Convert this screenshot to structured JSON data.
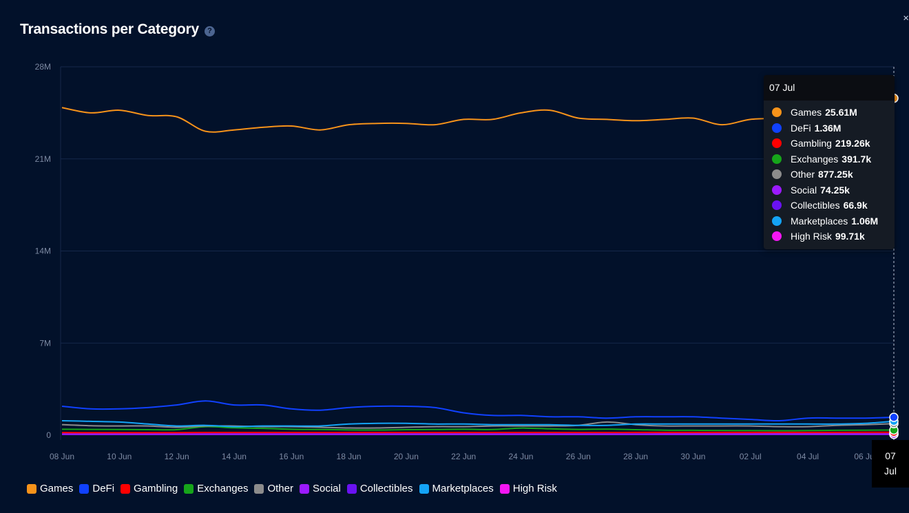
{
  "header": {
    "title": "Transactions per Category",
    "help_icon": "question-circle-icon",
    "close_glyph": "×"
  },
  "tooltip": {
    "date": "07 Jul",
    "rows": [
      {
        "name": "Games",
        "value": "25.61M",
        "color": "#f7931a"
      },
      {
        "name": "DeFi",
        "value": "1.36M",
        "color": "#1041ff"
      },
      {
        "name": "Gambling",
        "value": "219.26k",
        "color": "#ff0000"
      },
      {
        "name": "Exchanges",
        "value": "391.7k",
        "color": "#16a51a"
      },
      {
        "name": "Other",
        "value": "877.25k",
        "color": "#8c8c8c"
      },
      {
        "name": "Social",
        "value": "74.25k",
        "color": "#9b1aff"
      },
      {
        "name": "Collectibles",
        "value": "66.9k",
        "color": "#6a12f2"
      },
      {
        "name": "Marketplaces",
        "value": "1.06M",
        "color": "#14a3f5"
      },
      {
        "name": "High Risk",
        "value": "99.71k",
        "color": "#f516f3"
      }
    ]
  },
  "hover_x_label": {
    "line1": "07",
    "line2": "Jul"
  },
  "chart_data": {
    "type": "line",
    "title": "Transactions per Category",
    "xlabel": "",
    "ylabel": "",
    "ylim": [
      0,
      28000000
    ],
    "y_ticks": [
      {
        "label": "28M",
        "value": 28000000
      },
      {
        "label": "21M",
        "value": 21000000
      },
      {
        "label": "14M",
        "value": 14000000
      },
      {
        "label": "7M",
        "value": 7000000
      },
      {
        "label": "0",
        "value": 0
      }
    ],
    "x_ticks": [
      "08 Jun",
      "10 Jun",
      "12 Jun",
      "14 Jun",
      "16 Jun",
      "18 Jun",
      "20 Jun",
      "22 Jun",
      "24 Jun",
      "26 Jun",
      "28 Jun",
      "30 Jun",
      "02 Jul",
      "04 Jul",
      "06 Jul"
    ],
    "grid": true,
    "legend_position": "bottom-left",
    "x": [
      "08 Jun",
      "09 Jun",
      "10 Jun",
      "11 Jun",
      "12 Jun",
      "13 Jun",
      "14 Jun",
      "15 Jun",
      "16 Jun",
      "17 Jun",
      "18 Jun",
      "19 Jun",
      "20 Jun",
      "21 Jun",
      "22 Jun",
      "23 Jun",
      "24 Jun",
      "25 Jun",
      "26 Jun",
      "27 Jun",
      "28 Jun",
      "29 Jun",
      "30 Jun",
      "01 Jul",
      "02 Jul",
      "03 Jul",
      "04 Jul",
      "05 Jul",
      "06 Jul",
      "07 Jul"
    ],
    "series": [
      {
        "name": "Games",
        "color": "#f7931a",
        "values": [
          24900000,
          24500000,
          24700000,
          24300000,
          24200000,
          23100000,
          23200000,
          23400000,
          23500000,
          23200000,
          23600000,
          23700000,
          23700000,
          23600000,
          24000000,
          24000000,
          24500000,
          24700000,
          24100000,
          24000000,
          23900000,
          24000000,
          24100000,
          23600000,
          24000000,
          24100000,
          24300000,
          24600000,
          24900000,
          25610000
        ]
      },
      {
        "name": "DeFi",
        "color": "#1041ff",
        "values": [
          2200000,
          2000000,
          2000000,
          2100000,
          2300000,
          2600000,
          2300000,
          2300000,
          2000000,
          1900000,
          2100000,
          2200000,
          2200000,
          2100000,
          1700000,
          1500000,
          1500000,
          1400000,
          1400000,
          1300000,
          1400000,
          1400000,
          1400000,
          1300000,
          1200000,
          1100000,
          1300000,
          1300000,
          1300000,
          1360000
        ]
      },
      {
        "name": "Gambling",
        "color": "#ff0000",
        "values": [
          200000,
          200000,
          200000,
          200000,
          200000,
          210000,
          210000,
          210000,
          210000,
          210000,
          210000,
          210000,
          210000,
          210000,
          210000,
          210000,
          210000,
          210000,
          210000,
          210000,
          215000,
          215000,
          215000,
          215000,
          215000,
          215000,
          215000,
          215000,
          219000,
          219260
        ]
      },
      {
        "name": "Exchanges",
        "color": "#16a51a",
        "values": [
          450000,
          440000,
          430000,
          420000,
          420000,
          650000,
          560000,
          520000,
          450000,
          430000,
          400000,
          390000,
          420000,
          430000,
          450000,
          430000,
          540000,
          480000,
          440000,
          460000,
          420000,
          380000,
          370000,
          360000,
          350000,
          340000,
          350000,
          370000,
          380000,
          391700
        ]
      },
      {
        "name": "Other",
        "color": "#8c8c8c",
        "values": [
          800000,
          720000,
          700000,
          700000,
          600000,
          700000,
          700000,
          650000,
          650000,
          600000,
          550000,
          550000,
          600000,
          650000,
          650000,
          700000,
          700000,
          700000,
          750000,
          1000000,
          800000,
          700000,
          700000,
          700000,
          700000,
          650000,
          650000,
          750000,
          800000,
          877250
        ]
      },
      {
        "name": "Social",
        "color": "#9b1aff",
        "values": [
          70000,
          70000,
          70000,
          70000,
          70000,
          70000,
          70000,
          70000,
          70000,
          70000,
          70000,
          70000,
          70000,
          70000,
          70000,
          70000,
          70000,
          70000,
          70000,
          70000,
          70000,
          70000,
          70000,
          70000,
          70000,
          72000,
          72000,
          73000,
          74000,
          74250
        ]
      },
      {
        "name": "Collectibles",
        "color": "#6a12f2",
        "values": [
          60000,
          60000,
          60000,
          60000,
          60000,
          60000,
          60000,
          60000,
          60000,
          60000,
          60000,
          60000,
          60000,
          60000,
          60000,
          60000,
          60000,
          60000,
          60000,
          60000,
          62000,
          62000,
          62000,
          64000,
          64000,
          64000,
          65000,
          66000,
          66000,
          66900
        ]
      },
      {
        "name": "Marketplaces",
        "color": "#14a3f5",
        "values": [
          1100000,
          1050000,
          1000000,
          850000,
          700000,
          750000,
          650000,
          700000,
          700000,
          700000,
          850000,
          900000,
          900000,
          850000,
          850000,
          800000,
          800000,
          800000,
          750000,
          750000,
          850000,
          850000,
          850000,
          850000,
          850000,
          850000,
          850000,
          850000,
          900000,
          1060000
        ]
      },
      {
        "name": "High Risk",
        "color": "#f516f3",
        "values": [
          90000,
          90000,
          90000,
          90000,
          90000,
          90000,
          95000,
          95000,
          95000,
          95000,
          95000,
          95000,
          95000,
          95000,
          95000,
          95000,
          95000,
          95000,
          95000,
          95000,
          95000,
          97000,
          97000,
          97000,
          97000,
          97000,
          97000,
          98000,
          99000,
          99710
        ]
      }
    ]
  },
  "legend": [
    {
      "label": "Games",
      "color": "#f7931a"
    },
    {
      "label": "DeFi",
      "color": "#1041ff"
    },
    {
      "label": "Gambling",
      "color": "#ff0000"
    },
    {
      "label": "Exchanges",
      "color": "#16a51a"
    },
    {
      "label": "Other",
      "color": "#8c8c8c"
    },
    {
      "label": "Social",
      "color": "#9b1aff"
    },
    {
      "label": "Collectibles",
      "color": "#6a12f2"
    },
    {
      "label": "Marketplaces",
      "color": "#14a3f5"
    },
    {
      "label": "High Risk",
      "color": "#f516f3"
    }
  ]
}
